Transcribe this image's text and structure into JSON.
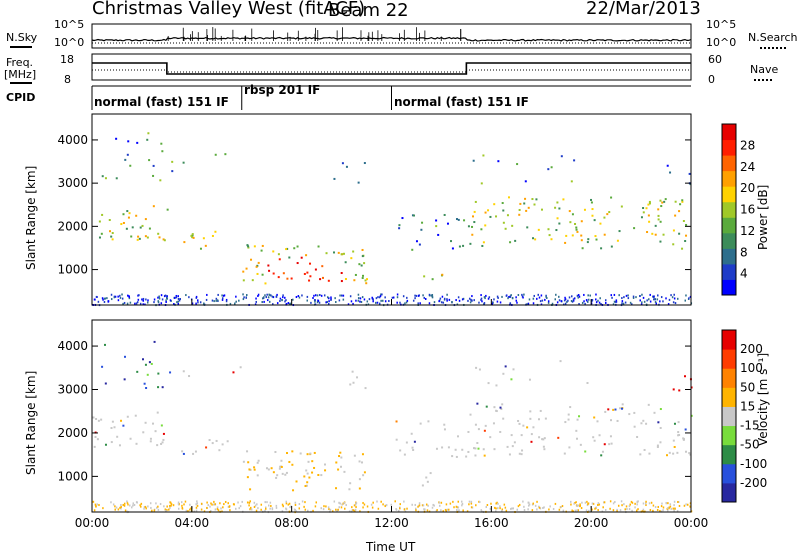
{
  "header": {
    "title": "Christmas Valley West (fitACF)",
    "beam": "Beam 22",
    "date": "22/Mar/2013"
  },
  "status_panel": {
    "nsky_label": "N.Sky",
    "nsearch_label": "N.Search",
    "freq_label_1": "Freq.",
    "freq_label_2": "[MHz]",
    "nave_label": "Nave",
    "cpid_label": "CPID",
    "noise_ticks_left": [
      "10^5",
      "10^0"
    ],
    "noise_ticks_right": [
      "10^5",
      "10^0"
    ],
    "freq_ticks_left": [
      "18",
      "8"
    ],
    "freq_ticks_right": [
      "60",
      "0"
    ]
  },
  "cpid_modes": [
    {
      "label": "normal (fast) 151 IF",
      "start_hour": 0,
      "end_hour": 6
    },
    {
      "label": "rbsp 201 IF",
      "start_hour": 6,
      "end_hour": 12
    },
    {
      "label": "normal (fast) 151 IF",
      "start_hour": 12,
      "end_hour": 24
    }
  ],
  "chart_data": [
    {
      "type": "heatmap",
      "name": "power",
      "ylabel": "Slant Range [km]",
      "yticks": [
        "4000",
        "3000",
        "2000",
        "1000"
      ],
      "ytick_values": [
        4000,
        3000,
        2000,
        1000
      ],
      "ylim": [
        180,
        4600
      ],
      "xlim": [
        0,
        24
      ],
      "colorbar_label": "Power [dB]",
      "colorbar_ticks": [
        "28",
        "24",
        "20",
        "16",
        "12",
        "8",
        "4"
      ],
      "colorbar_colors": [
        "#0000ff",
        "#1e3cc8",
        "#2d6e8c",
        "#3c8c5a",
        "#5aaa3c",
        "#a0c828",
        "#ffd200",
        "#ffa000",
        "#ff6400",
        "#ff1e00",
        "#e60000"
      ]
    },
    {
      "type": "heatmap",
      "name": "velocity",
      "ylabel": "Slant Range [km]",
      "yticks": [
        "4000",
        "3000",
        "2000",
        "1000"
      ],
      "ytick_values": [
        4000,
        3000,
        2000,
        1000
      ],
      "ylim": [
        180,
        4600
      ],
      "xlim": [
        0,
        24
      ],
      "colorbar_label": "Velocity [m s⁻¹]",
      "colorbar_ticks": [
        "200",
        "100",
        "50",
        "15",
        "-15",
        "-50",
        "-100",
        "-200"
      ],
      "colorbar_colors": [
        "#2828a0",
        "#2850dc",
        "#2d8c46",
        "#78dc3c",
        "#c8c8c8",
        "#ffb400",
        "#ff8200",
        "#ff3c00",
        "#e60000"
      ]
    }
  ],
  "xaxis": {
    "label": "Time UT",
    "ticks": [
      "00:00",
      "04:00",
      "08:00",
      "12:00",
      "16:00",
      "20:00",
      "00:00"
    ],
    "tick_hours": [
      0,
      4,
      8,
      12,
      16,
      20,
      24
    ]
  },
  "colors": {
    "gray_scatter": "#c8c8c8"
  }
}
